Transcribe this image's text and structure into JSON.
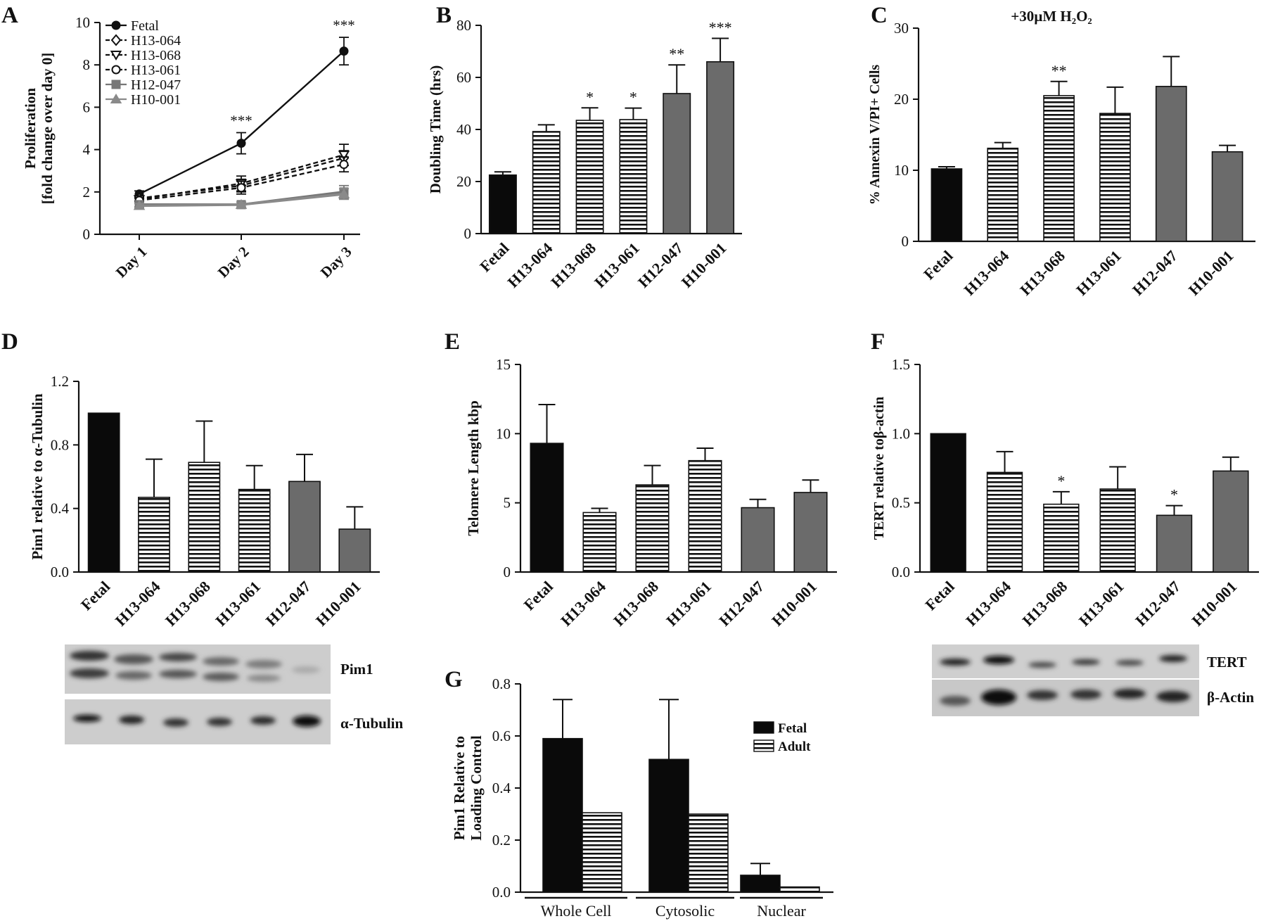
{
  "chart_data": [
    {
      "panel": "A",
      "type": "line",
      "ylabel": [
        "Proliferation",
        "[fold change over day 0]"
      ],
      "categories": [
        "Day 1",
        "Day 2",
        "Day 3"
      ],
      "ylim": [
        0,
        10
      ],
      "yticks": [
        "0",
        "2",
        "4",
        "6",
        "8",
        "10"
      ],
      "series": [
        {
          "name": "Fetal",
          "values": [
            1.9,
            4.3,
            8.65
          ],
          "err": [
            0.15,
            0.5,
            0.65
          ],
          "style": "solid",
          "marker": "circle-filled",
          "color": "#111111"
        },
        {
          "name": "H13-064",
          "values": [
            1.7,
            2.3,
            3.6
          ],
          "err": [
            0.12,
            0.3,
            0.35
          ],
          "style": "dashed",
          "marker": "diamond-open",
          "color": "#111111"
        },
        {
          "name": "H13-068",
          "values": [
            1.65,
            2.4,
            3.75
          ],
          "err": [
            0.12,
            0.35,
            0.5
          ],
          "style": "dashed",
          "marker": "triangle-down-open",
          "color": "#111111"
        },
        {
          "name": "H13-061",
          "values": [
            1.6,
            2.2,
            3.3
          ],
          "err": [
            0.12,
            0.3,
            0.35
          ],
          "style": "dashed",
          "marker": "circle-open",
          "color": "#111111"
        },
        {
          "name": "H12-047",
          "values": [
            1.4,
            1.4,
            2.0
          ],
          "err": [
            0.1,
            0.12,
            0.3
          ],
          "style": "solid",
          "marker": "square-filled",
          "color": "#777777"
        },
        {
          "name": "H10-001",
          "values": [
            1.35,
            1.4,
            1.9
          ],
          "err": [
            0.1,
            0.12,
            0.25
          ],
          "style": "solid",
          "marker": "triangle-up-filled",
          "color": "#8a8a8a"
        }
      ],
      "annotations": [
        {
          "label": "***",
          "category": "Day 2"
        },
        {
          "label": "***",
          "category": "Day 3"
        }
      ]
    },
    {
      "panel": "B",
      "type": "bar",
      "ylabel": [
        "Doubling Time (hrs)"
      ],
      "categories": [
        "Fetal",
        "H13-064",
        "H13-068",
        "H13-061",
        "H12-047",
        "H10-001"
      ],
      "values": [
        22.5,
        39.2,
        43.5,
        43.8,
        53.8,
        66
      ],
      "errors": [
        1.2,
        2.6,
        4.8,
        4.4,
        11,
        9
      ],
      "sig": [
        "",
        "",
        "*",
        "*",
        "**",
        "***"
      ],
      "fills": [
        "black",
        "hatch",
        "hatch",
        "hatch",
        "gray",
        "gray"
      ],
      "ylim": [
        0,
        80
      ],
      "yticks": [
        "0",
        "20",
        "40",
        "60",
        "80"
      ]
    },
    {
      "panel": "C",
      "type": "bar",
      "title": "+30µM H₂O₂",
      "ylabel": [
        "% Annexin V/PI+ Cells"
      ],
      "categories": [
        "Fetal",
        "H13-064",
        "H13-068",
        "H13-061",
        "H12-047",
        "H10-001"
      ],
      "values": [
        10.2,
        13.1,
        20.5,
        18,
        21.8,
        12.6
      ],
      "errors": [
        0.3,
        0.8,
        2,
        3.7,
        4.2,
        0.9
      ],
      "sig": [
        "",
        "",
        "**",
        "",
        "",
        ""
      ],
      "fills": [
        "black",
        "hatch",
        "hatch",
        "hatch",
        "gray",
        "gray"
      ],
      "ylim": [
        0,
        30
      ],
      "yticks": [
        "0",
        "10",
        "20",
        "30"
      ]
    },
    {
      "panel": "D",
      "type": "bar",
      "ylabel": [
        "Pim1 relative to α-Tubulin"
      ],
      "categories": [
        "Fetal",
        "H13-064",
        "H13-068",
        "H13-061",
        "H12-047",
        "H10-001"
      ],
      "values": [
        1.0,
        0.47,
        0.69,
        0.52,
        0.57,
        0.27
      ],
      "errors": [
        0,
        0.24,
        0.26,
        0.15,
        0.17,
        0.14
      ],
      "sig": [
        "",
        "",
        "",
        "",
        "",
        ""
      ],
      "fills": [
        "black",
        "hatch",
        "hatch",
        "hatch",
        "gray",
        "gray"
      ],
      "ylim": [
        0,
        1.2
      ],
      "yticks": [
        "0.0",
        "0.4",
        "0.8",
        "1.2"
      ]
    },
    {
      "panel": "E",
      "type": "bar",
      "ylabel": [
        "Telomere Length kbp"
      ],
      "categories": [
        "Fetal",
        "H13-064",
        "H13-068",
        "H13-061",
        "H12-047",
        "H10-001"
      ],
      "values": [
        9.3,
        4.3,
        6.3,
        8.05,
        4.65,
        5.75
      ],
      "errors": [
        2.8,
        0.3,
        1.4,
        0.9,
        0.6,
        0.9
      ],
      "sig": [
        "",
        "",
        "",
        "",
        "",
        ""
      ],
      "fills": [
        "black",
        "hatch",
        "hatch",
        "hatch",
        "gray",
        "gray"
      ],
      "ylim": [
        0,
        15
      ],
      "yticks": [
        "0",
        "5",
        "10",
        "15"
      ]
    },
    {
      "panel": "F",
      "type": "bar",
      "ylabel": [
        "TERT relative toβ-actin"
      ],
      "categories": [
        "Fetal",
        "H13-064",
        "H13-068",
        "H13-061",
        "H12-047",
        "H10-001"
      ],
      "values": [
        1.0,
        0.72,
        0.49,
        0.6,
        0.41,
        0.73
      ],
      "errors": [
        0,
        0.15,
        0.09,
        0.16,
        0.07,
        0.1
      ],
      "sig": [
        "",
        "",
        "*",
        "",
        "*",
        ""
      ],
      "fills": [
        "black",
        "hatch",
        "hatch",
        "hatch",
        "gray",
        "gray"
      ],
      "ylim": [
        0,
        1.5
      ],
      "yticks": [
        "0.0",
        "0.5",
        "1.0",
        "1.5"
      ]
    },
    {
      "panel": "G",
      "type": "bar",
      "ylabel": [
        "Pim1 Relative to",
        "Loading Control"
      ],
      "categories": [
        "Whole Cell",
        "Cytosolic",
        "Nuclear"
      ],
      "series": [
        {
          "name": "Fetal",
          "values": [
            0.59,
            0.51,
            0.065
          ],
          "errors": [
            0.15,
            0.23,
            0.045
          ],
          "fill": "black"
        },
        {
          "name": "Adult",
          "values": [
            0.305,
            0.3,
            0.02
          ],
          "errors": [
            0,
            0,
            0
          ],
          "fill": "hatch"
        }
      ],
      "ylim": [
        0,
        0.8
      ],
      "yticks": [
        "0.0",
        "0.2",
        "0.4",
        "0.6",
        "0.8"
      ]
    }
  ],
  "blots": {
    "D": {
      "labels": [
        "Pim1",
        "α-Tubulin"
      ]
    },
    "F": {
      "labels": [
        "TERT",
        "β-Actin"
      ]
    }
  }
}
